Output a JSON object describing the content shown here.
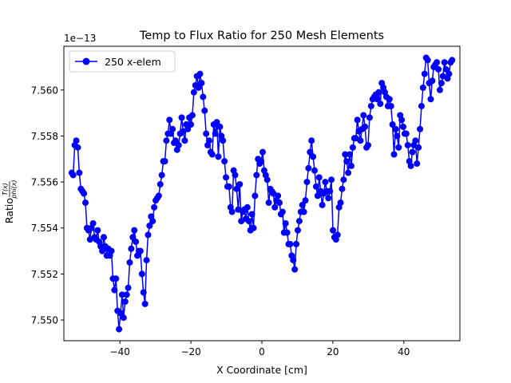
{
  "chart_data": {
    "type": "line",
    "title": "Temp to Flux Ratio for 250 Mesh Elements",
    "xlabel": "X Coordinate [cm]",
    "ylabel_prefix": "Ratio ",
    "ylabel_num": "T(x)",
    "ylabel_den": "phi(x)",
    "offset_text": "1e−13",
    "xlim": [
      -55.8,
      55.8
    ],
    "ylim": [
      7.5491,
      7.5619
    ],
    "x_ticks": [
      -40,
      -20,
      0,
      20,
      40
    ],
    "x_tick_labels": [
      "−40",
      "−20",
      "0",
      "20",
      "40"
    ],
    "y_ticks": [
      7.55,
      7.552,
      7.554,
      7.556,
      7.558,
      7.56
    ],
    "y_tick_labels": [
      "7.550",
      "7.552",
      "7.554",
      "7.556",
      "7.558",
      "7.560"
    ],
    "legend_position": "upper-left",
    "grid": false,
    "series": [
      {
        "name": "250 x-elem",
        "color": "#0000ff",
        "marker": "circle",
        "x_start": -53.6,
        "x_end": 53.6,
        "values": [
          7.5564,
          7.5563,
          7.5576,
          7.5578,
          7.5575,
          7.5564,
          7.5557,
          7.5556,
          7.5555,
          7.5551,
          7.554,
          7.5539,
          7.5535,
          7.554,
          7.5542,
          7.5536,
          7.5535,
          7.5539,
          7.5534,
          7.5532,
          7.553,
          7.5536,
          7.5532,
          7.5528,
          7.5531,
          7.5528,
          7.553,
          7.5518,
          7.5513,
          7.5518,
          7.5504,
          7.5496,
          7.5503,
          7.5511,
          7.5501,
          7.5508,
          7.5511,
          7.5514,
          7.5525,
          7.5531,
          7.5536,
          7.5539,
          7.5534,
          7.5528,
          7.553,
          7.553,
          7.552,
          7.5512,
          7.5507,
          7.5526,
          7.5537,
          7.5541,
          7.5545,
          7.5543,
          7.5549,
          7.5552,
          7.5553,
          7.5554,
          7.5559,
          7.5563,
          7.5569,
          7.5569,
          7.5578,
          7.5581,
          7.5587,
          7.5581,
          7.5583,
          7.5577,
          7.5578,
          7.5574,
          7.5576,
          7.5581,
          7.5588,
          7.5582,
          7.5578,
          7.5585,
          7.5583,
          7.5588,
          7.5585,
          7.5589,
          7.5599,
          7.5602,
          7.5606,
          7.5601,
          7.5607,
          7.5603,
          7.5597,
          7.5591,
          7.5581,
          7.5576,
          7.5578,
          7.5573,
          7.5572,
          7.5585,
          7.5581,
          7.5586,
          7.5571,
          7.5584,
          7.558,
          7.5578,
          7.5569,
          7.5562,
          7.5558,
          7.5558,
          7.5549,
          7.5547,
          7.5565,
          7.5563,
          7.5557,
          7.5548,
          7.5559,
          7.5543,
          7.5547,
          7.5548,
          7.5544,
          7.5549,
          7.5543,
          7.5539,
          7.5546,
          7.554,
          7.5554,
          7.5563,
          7.557,
          7.5568,
          7.5569,
          7.5573,
          7.5565,
          7.5563,
          7.5561,
          7.5551,
          7.5557,
          7.5556,
          7.5555,
          7.5549,
          7.5552,
          7.5554,
          7.5551,
          7.5546,
          7.5547,
          7.5538,
          7.5542,
          7.5538,
          7.5533,
          7.5533,
          7.5528,
          7.5526,
          7.5522,
          7.5533,
          7.5539,
          7.5543,
          7.5547,
          7.555,
          7.5547,
          7.5552,
          7.556,
          7.5566,
          7.5573,
          7.5578,
          7.5571,
          7.5565,
          7.5558,
          7.5554,
          7.5562,
          7.5556,
          7.555,
          7.5555,
          7.556,
          7.5556,
          7.5553,
          7.5556,
          7.5561,
          7.5539,
          7.5536,
          7.5535,
          7.5537,
          7.5549,
          7.5551,
          7.5557,
          7.5561,
          7.5572,
          7.5569,
          7.5564,
          7.5572,
          7.5567,
          7.5575,
          7.5579,
          7.5579,
          7.5587,
          7.5582,
          7.5578,
          7.5583,
          7.5589,
          7.5584,
          7.5575,
          7.5576,
          7.5588,
          7.5593,
          7.5596,
          7.5597,
          7.5598,
          7.5596,
          7.5599,
          7.5594,
          7.5603,
          7.5601,
          7.5599,
          7.5597,
          7.5593,
          7.5596,
          7.5593,
          7.5585,
          7.5572,
          7.5583,
          7.558,
          7.5575,
          7.5589,
          7.5587,
          7.5584,
          7.5581,
          7.5581,
          7.5576,
          7.5569,
          7.5567,
          7.5573,
          7.5576,
          7.5578,
          7.5568,
          7.5575,
          7.5583,
          7.5593,
          7.5601,
          7.5607,
          7.5614,
          7.5613,
          7.5603,
          7.5596,
          7.5604,
          7.561,
          7.5611,
          7.5612,
          7.5609,
          7.56,
          7.5603,
          7.5606,
          7.5612,
          7.5609,
          7.5605,
          7.5607,
          7.5612,
          7.5613
        ]
      }
    ]
  }
}
